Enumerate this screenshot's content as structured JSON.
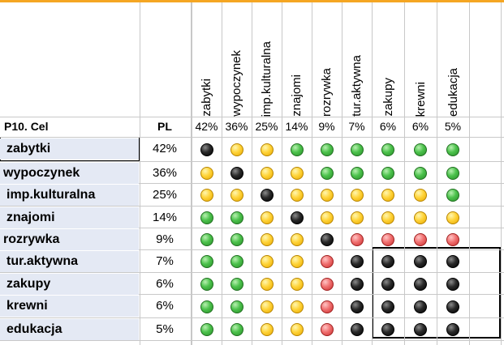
{
  "header": {
    "title": "P10. Cel",
    "pl_label": "PL"
  },
  "columns": [
    {
      "label": "zabytki",
      "pct": "42%"
    },
    {
      "label": "wypoczynek",
      "pct": "36%"
    },
    {
      "label": "imp.kulturalna",
      "pct": "25%"
    },
    {
      "label": "znajomi",
      "pct": "14%"
    },
    {
      "label": "rozrywka",
      "pct": "9%"
    },
    {
      "label": "tur.aktywna",
      "pct": "7%"
    },
    {
      "label": "zakupy",
      "pct": "6%"
    },
    {
      "label": "krewni",
      "pct": "6%"
    },
    {
      "label": "edukacja",
      "pct": "5%"
    }
  ],
  "rows": [
    {
      "label": "zabytki",
      "pl": "42%",
      "dots": [
        "black",
        "yellow",
        "yellow",
        "green",
        "green",
        "green",
        "green",
        "green",
        "green"
      ]
    },
    {
      "label": "wypoczynek",
      "pl": "36%",
      "dots": [
        "yellow",
        "black",
        "yellow",
        "yellow",
        "green",
        "green",
        "green",
        "green",
        "green"
      ]
    },
    {
      "label": "imp.kulturalna",
      "pl": "25%",
      "dots": [
        "yellow",
        "yellow",
        "black",
        "yellow",
        "yellow",
        "yellow",
        "yellow",
        "yellow",
        "green"
      ]
    },
    {
      "label": "znajomi",
      "pl": "14%",
      "dots": [
        "green",
        "green",
        "yellow",
        "black",
        "yellow",
        "yellow",
        "yellow",
        "yellow",
        "yellow"
      ]
    },
    {
      "label": "rozrywka",
      "pl": "9%",
      "dots": [
        "green",
        "green",
        "yellow",
        "yellow",
        "black",
        "red",
        "red",
        "red",
        "red"
      ]
    },
    {
      "label": "tur.aktywna",
      "pl": "7%",
      "dots": [
        "green",
        "green",
        "yellow",
        "yellow",
        "red",
        "black",
        "black",
        "black",
        "black"
      ]
    },
    {
      "label": "zakupy",
      "pl": "6%",
      "dots": [
        "green",
        "green",
        "yellow",
        "yellow",
        "red",
        "black",
        "black",
        "black",
        "black"
      ]
    },
    {
      "label": "krewni",
      "pl": "6%",
      "dots": [
        "green",
        "green",
        "yellow",
        "yellow",
        "red",
        "black",
        "black",
        "black",
        "black"
      ]
    },
    {
      "label": "edukacja",
      "pl": "5%",
      "dots": [
        "green",
        "green",
        "yellow",
        "yellow",
        "red",
        "black",
        "black",
        "black",
        "black"
      ]
    }
  ]
}
